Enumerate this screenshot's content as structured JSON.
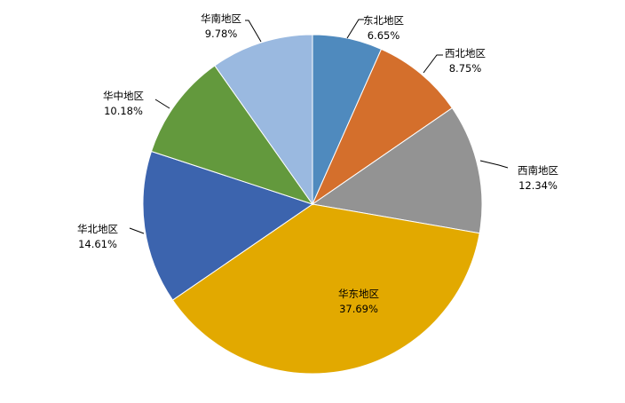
{
  "chart_data": {
    "type": "pie",
    "start_angle": "12 o'clock",
    "direction": "clockwise",
    "slices": [
      {
        "label": "东北地区",
        "value": 6.65,
        "value_label": "6.65%",
        "color": "#4F8ABE"
      },
      {
        "label": "西北地区",
        "value": 8.75,
        "value_label": "8.75%",
        "color": "#D46F2C"
      },
      {
        "label": "西南地区",
        "value": 12.34,
        "value_label": "12.34%",
        "color": "#939393"
      },
      {
        "label": "华东地区",
        "value": 37.69,
        "value_label": "37.69%",
        "color": "#E2A900"
      },
      {
        "label": "华北地区",
        "value": 14.61,
        "value_label": "14.61%",
        "color": "#3C64AE"
      },
      {
        "label": "华中地区",
        "value": 10.18,
        "value_label": "10.18%",
        "color": "#63993D"
      },
      {
        "label": "华南地区",
        "value": 9.78,
        "value_label": "9.78%",
        "color": "#9AB9E0"
      }
    ]
  }
}
